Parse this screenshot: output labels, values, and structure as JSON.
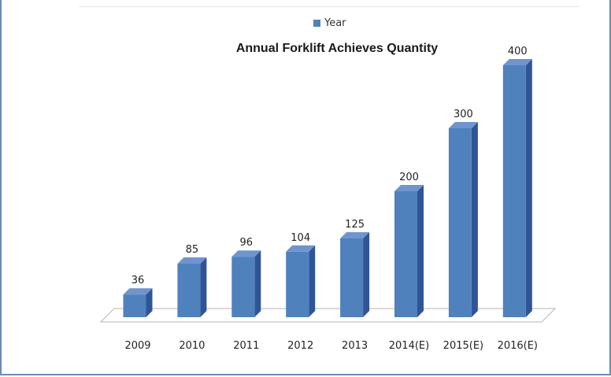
{
  "chart_data": {
    "type": "bar",
    "title": "Annual Forklift Achieves Quantity",
    "categories": [
      "2009",
      "2010",
      "2011",
      "2012",
      "2013",
      "2014(E)",
      "2015(E)",
      "2016(E)"
    ],
    "series": [
      {
        "name": "Year",
        "values": [
          36,
          85,
          96,
          104,
          125,
          200,
          300,
          400
        ],
        "color": "#4f81bd"
      }
    ],
    "data_labels": [
      "36",
      "85",
      "96",
      "104",
      "125",
      "200",
      "300",
      "400"
    ],
    "legend_position": "top",
    "style": "3d-column",
    "grid": false
  }
}
